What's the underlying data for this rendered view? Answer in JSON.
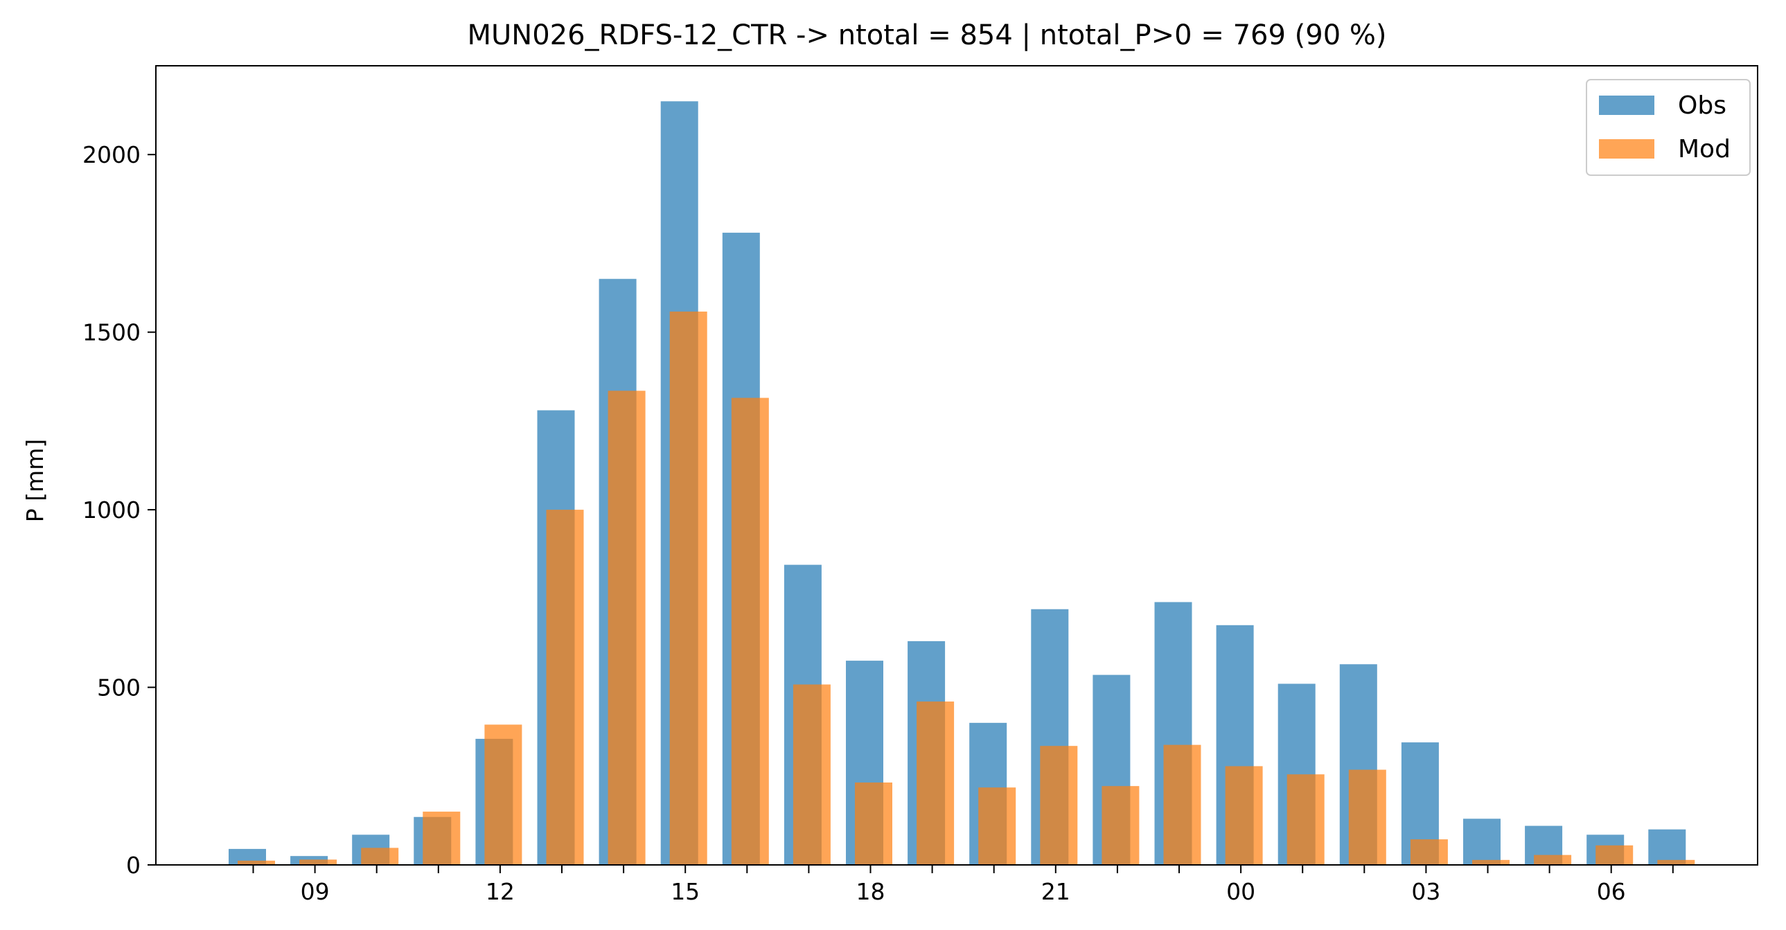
{
  "chart_data": {
    "type": "bar",
    "title": "MUN026_RDFS-12_CTR -> ntotal = 854 | ntotal_P>0 = 769 (90 %)",
    "xlabel": "",
    "ylabel": "P [mm]",
    "ylim": [
      0,
      2250
    ],
    "yticks": [
      0,
      500,
      1000,
      1500,
      2000
    ],
    "hours": [
      "08",
      "09",
      "10",
      "11",
      "12",
      "13",
      "14",
      "15",
      "16",
      "17",
      "18",
      "19",
      "20",
      "21",
      "22",
      "23",
      "00",
      "01",
      "02",
      "03",
      "04",
      "05",
      "06",
      "07"
    ],
    "xtick_labels": [
      "09",
      "12",
      "15",
      "18",
      "21",
      "00",
      "03",
      "06"
    ],
    "series": [
      {
        "name": "Obs",
        "color": "#1f77b4",
        "values": [
          45,
          25,
          85,
          135,
          355,
          1280,
          1650,
          2150,
          1780,
          845,
          575,
          630,
          400,
          720,
          535,
          740,
          675,
          510,
          565,
          345,
          130,
          110,
          85,
          100
        ]
      },
      {
        "name": "Mod",
        "color": "#ff7f0e",
        "values": [
          12,
          15,
          48,
          150,
          395,
          1000,
          1335,
          1558,
          1315,
          508,
          232,
          460,
          218,
          335,
          222,
          338,
          278,
          255,
          268,
          72,
          14,
          28,
          55,
          14
        ]
      }
    ],
    "legend_position": "top-right",
    "grid": false
  }
}
